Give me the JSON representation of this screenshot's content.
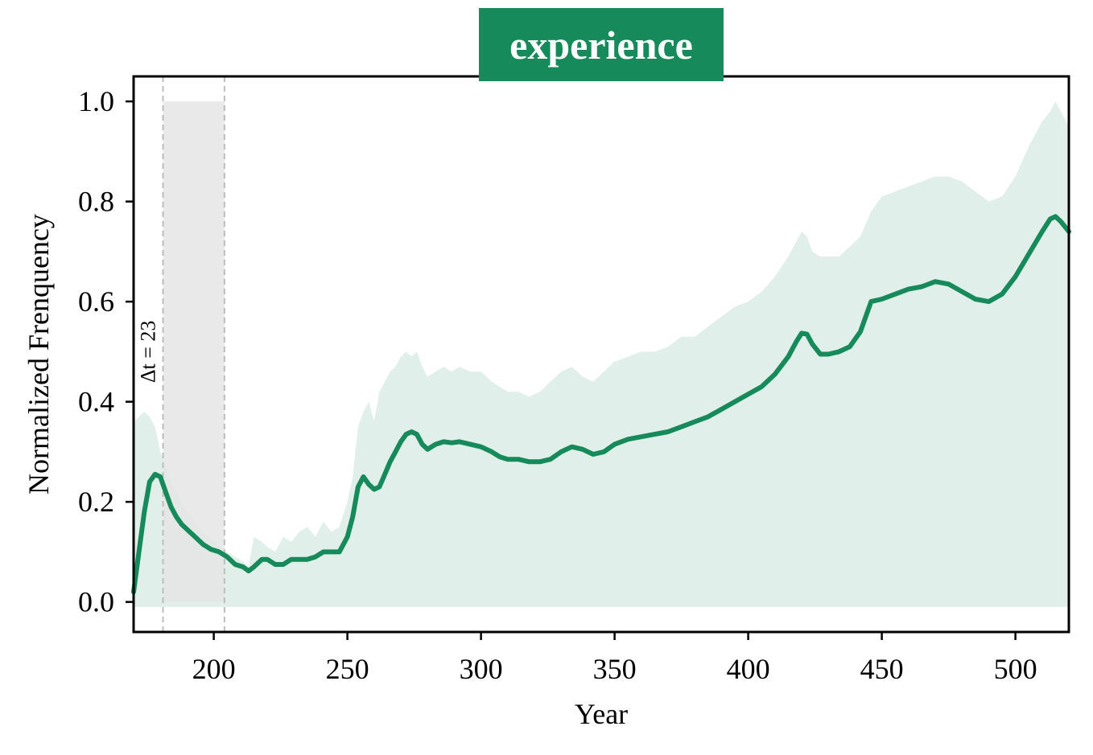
{
  "chart_data": {
    "type": "line",
    "title": "experience",
    "xlabel": "Year",
    "ylabel": "Normalized Frenquency",
    "xlim": [
      170,
      520
    ],
    "ylim": [
      -0.06,
      1.05
    ],
    "xticks": [
      "200",
      "250",
      "300",
      "350",
      "400",
      "450",
      "500"
    ],
    "yticks": [
      "0.0",
      "0.2",
      "0.4",
      "0.6",
      "0.8",
      "1.0"
    ],
    "grid": false,
    "colors": {
      "line": "#168a5a",
      "band": "#e0efe9",
      "window": "#e5e5e5",
      "title_bg": "#168a5a"
    },
    "window": {
      "x_start": 181,
      "x_end": 204,
      "y_top": 1.0,
      "label": "Δt = 23"
    },
    "series": [
      {
        "x": [
          170,
          172,
          174,
          176,
          178,
          180,
          182,
          184,
          186,
          188,
          190,
          193,
          196,
          199,
          202,
          205,
          208,
          211,
          213,
          215,
          218,
          220,
          223,
          226,
          229,
          232,
          235,
          238,
          241,
          244,
          247,
          250,
          252,
          254,
          256,
          258,
          260,
          262,
          264,
          266,
          268,
          270,
          272,
          274,
          276,
          278,
          280,
          283,
          286,
          289,
          292,
          296,
          300,
          304,
          307,
          310,
          314,
          318,
          322,
          326,
          330,
          334,
          338,
          342,
          346,
          350,
          355,
          360,
          365,
          370,
          375,
          380,
          385,
          390,
          395,
          400,
          405,
          410,
          415,
          418,
          420,
          422,
          424,
          427,
          430,
          434,
          438,
          442,
          446,
          450,
          455,
          460,
          465,
          470,
          475,
          480,
          485,
          490,
          495,
          500,
          505,
          510,
          513,
          515,
          517,
          520
        ],
        "y": [
          0.02,
          0.1,
          0.18,
          0.24,
          0.255,
          0.25,
          0.22,
          0.19,
          0.17,
          0.155,
          0.145,
          0.13,
          0.115,
          0.105,
          0.1,
          0.09,
          0.075,
          0.07,
          0.062,
          0.07,
          0.085,
          0.085,
          0.075,
          0.075,
          0.085,
          0.085,
          0.085,
          0.09,
          0.1,
          0.1,
          0.1,
          0.13,
          0.17,
          0.23,
          0.25,
          0.235,
          0.225,
          0.23,
          0.255,
          0.28,
          0.3,
          0.32,
          0.335,
          0.34,
          0.335,
          0.315,
          0.305,
          0.315,
          0.32,
          0.318,
          0.32,
          0.315,
          0.31,
          0.3,
          0.29,
          0.285,
          0.285,
          0.28,
          0.28,
          0.285,
          0.3,
          0.31,
          0.305,
          0.295,
          0.3,
          0.315,
          0.325,
          0.33,
          0.335,
          0.34,
          0.35,
          0.36,
          0.37,
          0.385,
          0.4,
          0.415,
          0.43,
          0.455,
          0.49,
          0.52,
          0.537,
          0.535,
          0.515,
          0.495,
          0.495,
          0.5,
          0.51,
          0.54,
          0.6,
          0.605,
          0.615,
          0.625,
          0.63,
          0.64,
          0.635,
          0.62,
          0.605,
          0.6,
          0.615,
          0.65,
          0.695,
          0.74,
          0.765,
          0.77,
          0.76,
          0.74
        ],
        "lower": [
          -0.01,
          -0.01,
          -0.01,
          -0.01,
          -0.01,
          -0.01,
          -0.01,
          -0.01,
          -0.01,
          -0.01,
          -0.01,
          -0.01,
          -0.01,
          -0.01,
          -0.01,
          -0.01,
          -0.01,
          -0.01,
          -0.01,
          -0.01,
          -0.01,
          -0.01,
          -0.01,
          -0.01,
          -0.01,
          -0.01,
          -0.01,
          -0.01,
          -0.01,
          -0.01,
          -0.01,
          -0.01,
          -0.01,
          -0.01,
          -0.01,
          -0.01,
          -0.01,
          -0.01,
          -0.01,
          -0.01,
          -0.01,
          -0.01,
          -0.01,
          -0.01,
          -0.01,
          -0.01,
          -0.01,
          -0.01,
          -0.01,
          -0.01,
          -0.01,
          -0.01,
          -0.01,
          -0.01,
          -0.01,
          -0.01,
          -0.01,
          -0.01,
          -0.01,
          -0.01,
          -0.01,
          -0.01,
          -0.01,
          -0.01,
          -0.01,
          -0.01,
          -0.01,
          -0.01,
          -0.01,
          -0.01,
          -0.01,
          -0.01,
          -0.01,
          -0.01,
          -0.01,
          -0.01,
          -0.01,
          -0.01,
          -0.01,
          -0.01,
          -0.01,
          -0.01,
          -0.01,
          -0.01,
          -0.01,
          -0.01,
          -0.01,
          -0.01,
          -0.01,
          -0.01,
          -0.01,
          -0.01,
          -0.01,
          -0.01,
          -0.01,
          -0.01,
          -0.01,
          -0.01,
          -0.01,
          -0.01,
          -0.01,
          -0.01,
          -0.01,
          -0.01,
          -0.01,
          -0.01
        ],
        "upper": [
          0.36,
          0.37,
          0.38,
          0.37,
          0.35,
          0.3,
          0.27,
          0.24,
          0.22,
          0.2,
          0.18,
          0.16,
          0.14,
          0.125,
          0.11,
          0.1,
          0.09,
          0.08,
          0.07,
          0.13,
          0.12,
          0.11,
          0.1,
          0.13,
          0.12,
          0.14,
          0.15,
          0.13,
          0.16,
          0.14,
          0.15,
          0.2,
          0.25,
          0.35,
          0.38,
          0.4,
          0.36,
          0.42,
          0.44,
          0.46,
          0.47,
          0.49,
          0.5,
          0.49,
          0.5,
          0.47,
          0.45,
          0.46,
          0.47,
          0.46,
          0.47,
          0.46,
          0.46,
          0.44,
          0.43,
          0.42,
          0.42,
          0.41,
          0.42,
          0.44,
          0.46,
          0.47,
          0.45,
          0.44,
          0.46,
          0.48,
          0.49,
          0.5,
          0.5,
          0.51,
          0.53,
          0.53,
          0.55,
          0.57,
          0.59,
          0.6,
          0.62,
          0.65,
          0.69,
          0.72,
          0.74,
          0.73,
          0.7,
          0.69,
          0.69,
          0.69,
          0.71,
          0.73,
          0.78,
          0.81,
          0.82,
          0.83,
          0.84,
          0.85,
          0.85,
          0.84,
          0.82,
          0.8,
          0.81,
          0.85,
          0.91,
          0.96,
          0.98,
          1.0,
          0.98,
          0.95
        ]
      }
    ]
  }
}
